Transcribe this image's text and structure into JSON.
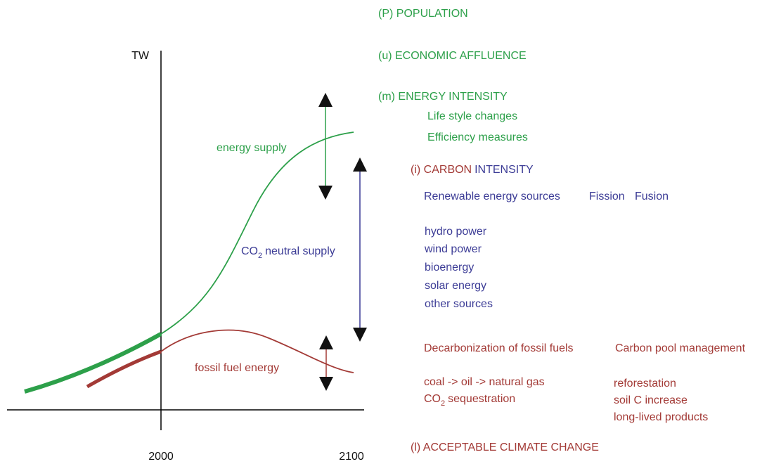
{
  "axis": {
    "y_label": "TW",
    "x_labels": [
      "2000",
      "2100"
    ]
  },
  "curves": {
    "energy_supply": "energy supply",
    "co2_neutral_supply": {
      "prefix": "CO",
      "subscript": "2",
      "suffix": "neutral supply"
    },
    "fossil_fuel": "fossil fuel energy"
  },
  "factors": {
    "population": "(P)  POPULATION",
    "affluence": "(u)  ECONOMIC AFFLUENCE",
    "energy_intensity": {
      "title": "(m) ENERGY INTENSITY",
      "items": [
        "Life style changes",
        "Efficiency measures"
      ]
    },
    "carbon_intensity": {
      "title_red": "(i) CARBON",
      "title_blue": "INTENSITY",
      "sources": [
        "Renewable energy sources",
        "Fission",
        "Fusion"
      ],
      "renewables": [
        "hydro power",
        "wind power",
        "bioenergy",
        "solar energy",
        "other sources"
      ],
      "decarbonization": {
        "title": "Decarbonization of fossil fuels",
        "items": [
          "coal -> oil -> natural gas"
        ],
        "sequestration": {
          "prefix": "CO",
          "subscript": "2",
          "suffix": "sequestration"
        }
      },
      "carbon_pool": {
        "title": "Carbon pool management",
        "items": [
          "reforestation",
          "soil C increase",
          "long-lived products"
        ]
      }
    },
    "climate_change": "(l) ACCEPTABLE CLIMATE CHANGE"
  }
}
